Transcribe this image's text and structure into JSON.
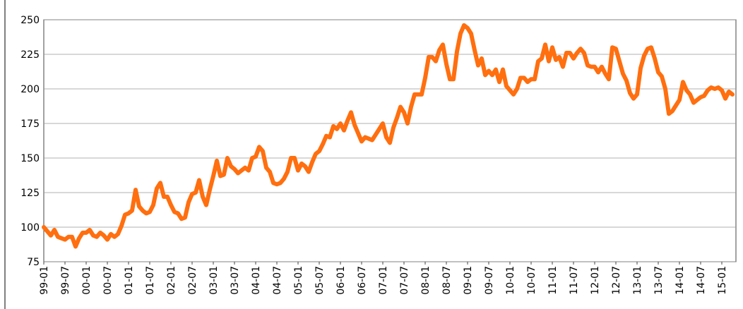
{
  "chart_data": {
    "type": "line",
    "categories": [
      "99-01",
      null,
      null,
      null,
      null,
      null,
      "99-07",
      null,
      null,
      null,
      null,
      null,
      "00-01",
      null,
      null,
      null,
      null,
      null,
      "00-07",
      null,
      null,
      null,
      null,
      null,
      "01-01",
      null,
      null,
      null,
      null,
      null,
      "01-07",
      null,
      null,
      null,
      null,
      null,
      "02-01",
      null,
      null,
      null,
      null,
      null,
      "02-07",
      null,
      null,
      null,
      null,
      null,
      "03-01",
      null,
      null,
      null,
      null,
      null,
      "03-07",
      null,
      null,
      null,
      null,
      null,
      "04-01",
      null,
      null,
      null,
      null,
      null,
      "04-07",
      null,
      null,
      null,
      null,
      null,
      "05-01",
      null,
      null,
      null,
      null,
      null,
      "05-07",
      null,
      null,
      null,
      null,
      null,
      "06-01",
      null,
      null,
      null,
      null,
      null,
      "06-07",
      null,
      null,
      null,
      null,
      null,
      "07-01",
      null,
      null,
      null,
      null,
      null,
      "07-07",
      null,
      null,
      null,
      null,
      null,
      "08-01",
      null,
      null,
      null,
      null,
      null,
      "08-07",
      null,
      null,
      null,
      null,
      null,
      "09-01",
      null,
      null,
      null,
      null,
      null,
      "09-07",
      null,
      null,
      null,
      null,
      null,
      "10-01",
      null,
      null,
      null,
      null,
      null,
      "10-07",
      null,
      null,
      null,
      null,
      null,
      "11-01",
      null,
      null,
      null,
      null,
      null,
      "11-07",
      null,
      null,
      null,
      null,
      null,
      "12-01",
      null,
      null,
      null,
      null,
      null,
      "12-07",
      null,
      null,
      null,
      null,
      null,
      "13-01",
      null,
      null,
      null,
      null,
      null,
      "13-07",
      null,
      null,
      null,
      null,
      null,
      "14-01",
      null,
      null,
      null,
      null,
      null,
      "14-07",
      null,
      null,
      null,
      null,
      null,
      "15-01",
      null,
      null,
      null
    ],
    "values": [
      100,
      97,
      94,
      98,
      93,
      92,
      91,
      93,
      93,
      86,
      92,
      96,
      96,
      98,
      94,
      93,
      96,
      94,
      91,
      95,
      93,
      95,
      101,
      109,
      110,
      112,
      127,
      115,
      112,
      110,
      111,
      116,
      128,
      132,
      122,
      122,
      116,
      111,
      110,
      106,
      107,
      118,
      124,
      125,
      134,
      122,
      116,
      127,
      137,
      148,
      137,
      138,
      150,
      144,
      142,
      139,
      141,
      143,
      141,
      150,
      151,
      158,
      155,
      143,
      140,
      132,
      131,
      132,
      135,
      140,
      150,
      150,
      141,
      146,
      144,
      140,
      147,
      153,
      155,
      160,
      166,
      165,
      173,
      171,
      175,
      170,
      177,
      183,
      174,
      168,
      162,
      165,
      164,
      163,
      167,
      171,
      175,
      165,
      161,
      172,
      179,
      187,
      183,
      175,
      187,
      196,
      196,
      196,
      208,
      223,
      223,
      220,
      228,
      232,
      218,
      207,
      207,
      227,
      240,
      246,
      244,
      240,
      228,
      217,
      222,
      210,
      213,
      210,
      214,
      205,
      214,
      202,
      199,
      196,
      200,
      208,
      208,
      205,
      207,
      207,
      220,
      222,
      232,
      220,
      230,
      221,
      223,
      216,
      226,
      226,
      222,
      226,
      229,
      226,
      217,
      216,
      216,
      212,
      216,
      211,
      207,
      230,
      229,
      220,
      211,
      206,
      197,
      193,
      196,
      215,
      224,
      229,
      230,
      222,
      212,
      209,
      200,
      182,
      184,
      188,
      192,
      205,
      199,
      196,
      190,
      192,
      194,
      195,
      199,
      201,
      200,
      201,
      199,
      193,
      198,
      196
    ],
    "color": "#ff6f0f",
    "ylim": [
      75,
      250
    ],
    "yticks": [
      75,
      100,
      125,
      150,
      175,
      200,
      225,
      250
    ],
    "grid": true
  }
}
